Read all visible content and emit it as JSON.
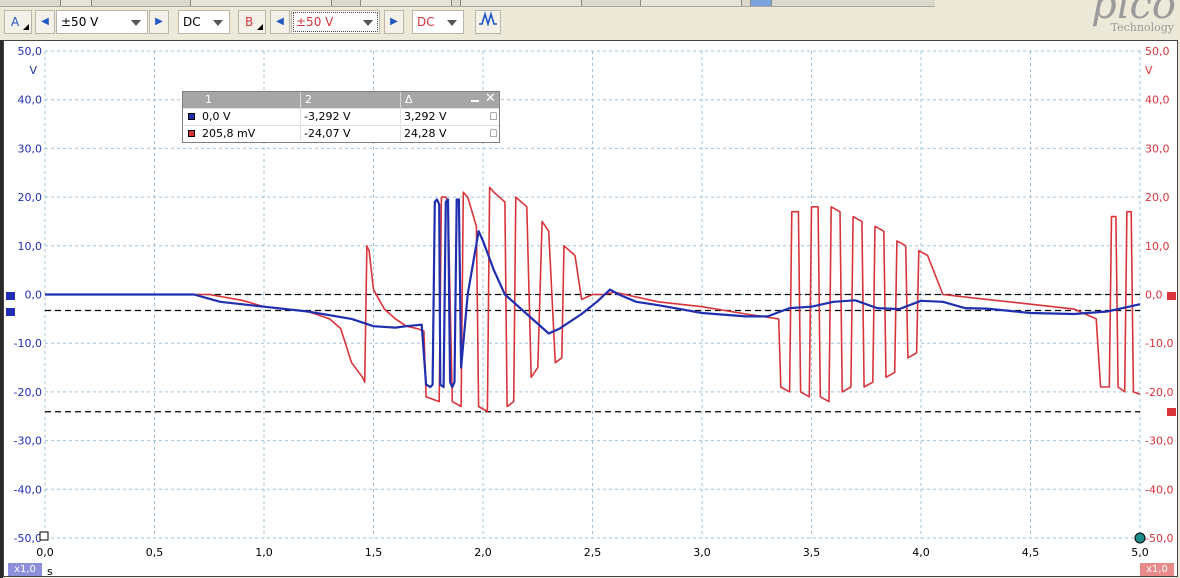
{
  "toolbar": {
    "channel_a": {
      "label": "A",
      "range": "±50 V",
      "coupling": "DC",
      "color": "#1f57c3"
    },
    "channel_b": {
      "label": "B",
      "range": "±50 V",
      "coupling": "DC",
      "color": "#d9343a"
    },
    "trigger_icon": "waveform-trigger-icon"
  },
  "logo": {
    "brand": "pico",
    "tagline": "Technology"
  },
  "left_axis": {
    "unit": "V",
    "ticks": [
      "50,0",
      "40,0",
      "30,0",
      "20,0",
      "10,0",
      "0,0",
      "-10,0",
      "-20,0",
      "-30,0",
      "-40,0",
      "-50,0"
    ]
  },
  "right_axis": {
    "unit": "V",
    "ticks": [
      "50,0",
      "40,0",
      "30,0",
      "20,0",
      "10,0",
      "0,0",
      "-10,0",
      "-20,0",
      "-30,0",
      "-40,0",
      "-50,0"
    ]
  },
  "x_axis": {
    "unit": "s",
    "ticks": [
      "0,0",
      "0,5",
      "1,0",
      "1,5",
      "2,0",
      "2,5",
      "3,0",
      "3,5",
      "4,0",
      "4,5",
      "5,0"
    ],
    "zoom_left": "x1,0",
    "zoom_right": "x1,0"
  },
  "cursor_table": {
    "headers": [
      "1",
      "2",
      "Δ"
    ],
    "rows": [
      {
        "color": "#1f2fb0",
        "c1": "0,0 V",
        "c2": "-3,292 V",
        "delta": "3,292 V"
      },
      {
        "color": "#d9343a",
        "c1": "205,8 mV",
        "c2": "-24,07 V",
        "delta": "24,28 V"
      }
    ]
  },
  "chart_data": {
    "type": "line",
    "xlabel": "s",
    "ylabel": "V",
    "xlim": [
      0,
      5
    ],
    "ylim": [
      -50,
      50
    ],
    "grid": true,
    "cursors_v": [
      0.0,
      -3.292,
      -24.07
    ],
    "series": [
      {
        "color": "#1f2fb0",
        "points": [
          [
            0,
            0
          ],
          [
            0.68,
            0
          ],
          [
            0.72,
            -0.5
          ],
          [
            0.8,
            -1.5
          ],
          [
            1.0,
            -2.5
          ],
          [
            1.2,
            -3.5
          ],
          [
            1.4,
            -5
          ],
          [
            1.5,
            -6.5
          ],
          [
            1.6,
            -6.8
          ],
          [
            1.65,
            -6.5
          ],
          [
            1.72,
            -6.2
          ],
          [
            1.74,
            -18.5
          ],
          [
            1.76,
            -19
          ],
          [
            1.77,
            -18.5
          ],
          [
            1.78,
            19
          ],
          [
            1.79,
            19.5
          ],
          [
            1.8,
            18.5
          ],
          [
            1.805,
            -18.5
          ],
          [
            1.82,
            -19
          ],
          [
            1.83,
            19
          ],
          [
            1.84,
            19.5
          ],
          [
            1.85,
            -18
          ],
          [
            1.86,
            -19
          ],
          [
            1.87,
            -18
          ],
          [
            1.88,
            19.5
          ],
          [
            1.89,
            19.5
          ],
          [
            1.9,
            -15
          ],
          [
            1.93,
            0
          ],
          [
            1.98,
            13
          ],
          [
            2.0,
            11
          ],
          [
            2.05,
            5
          ],
          [
            2.1,
            0
          ],
          [
            2.2,
            -4
          ],
          [
            2.3,
            -8
          ],
          [
            2.35,
            -7
          ],
          [
            2.45,
            -4
          ],
          [
            2.52,
            -1.5
          ],
          [
            2.58,
            1
          ],
          [
            2.62,
            0
          ],
          [
            2.7,
            -1.5
          ],
          [
            2.8,
            -2.2
          ],
          [
            2.9,
            -3
          ],
          [
            3.0,
            -3.8
          ],
          [
            3.2,
            -4.5
          ],
          [
            3.3,
            -4.5
          ],
          [
            3.4,
            -2.8
          ],
          [
            3.5,
            -2.5
          ],
          [
            3.6,
            -1.5
          ],
          [
            3.7,
            -1.2
          ],
          [
            3.8,
            -2.8
          ],
          [
            3.9,
            -3
          ],
          [
            4.0,
            -1.3
          ],
          [
            4.1,
            -1.5
          ],
          [
            4.2,
            -2.8
          ],
          [
            4.3,
            -2.9
          ],
          [
            4.5,
            -3.8
          ],
          [
            4.7,
            -4
          ],
          [
            4.85,
            -3.5
          ],
          [
            4.95,
            -2.5
          ],
          [
            5.0,
            -2
          ]
        ]
      },
      {
        "color": "#d9343a",
        "points": [
          [
            0,
            0
          ],
          [
            0.75,
            0
          ],
          [
            0.9,
            -1.2
          ],
          [
            1.0,
            -2.5
          ],
          [
            1.2,
            -3.5
          ],
          [
            1.3,
            -5
          ],
          [
            1.35,
            -7
          ],
          [
            1.4,
            -14
          ],
          [
            1.45,
            -17
          ],
          [
            1.46,
            -18
          ],
          [
            1.47,
            10
          ],
          [
            1.48,
            9
          ],
          [
            1.5,
            1
          ],
          [
            1.55,
            -3
          ],
          [
            1.6,
            -5
          ],
          [
            1.65,
            -6.5
          ],
          [
            1.7,
            -7
          ],
          [
            1.73,
            -7.5
          ],
          [
            1.74,
            -21
          ],
          [
            1.8,
            -22
          ],
          [
            1.81,
            20
          ],
          [
            1.83,
            20
          ],
          [
            1.84,
            19
          ],
          [
            1.86,
            -22
          ],
          [
            1.9,
            -23
          ],
          [
            1.91,
            21
          ],
          [
            1.93,
            20
          ],
          [
            1.97,
            14
          ],
          [
            1.98,
            -23
          ],
          [
            2.02,
            -24
          ],
          [
            2.03,
            22
          ],
          [
            2.05,
            21
          ],
          [
            2.1,
            19
          ],
          [
            2.11,
            -23
          ],
          [
            2.14,
            -22
          ],
          [
            2.15,
            20
          ],
          [
            2.2,
            18
          ],
          [
            2.22,
            -17
          ],
          [
            2.25,
            -15
          ],
          [
            2.27,
            15
          ],
          [
            2.3,
            13
          ],
          [
            2.33,
            -14
          ],
          [
            2.36,
            -13
          ],
          [
            2.37,
            10
          ],
          [
            2.42,
            8
          ],
          [
            2.45,
            -1
          ],
          [
            2.5,
            0
          ],
          [
            2.55,
            0
          ],
          [
            2.6,
            0.5
          ],
          [
            2.8,
            -1.5
          ],
          [
            3.0,
            -2.5
          ],
          [
            3.2,
            -4
          ],
          [
            3.35,
            -5
          ],
          [
            3.36,
            -19
          ],
          [
            3.4,
            -20
          ],
          [
            3.41,
            17
          ],
          [
            3.44,
            17
          ],
          [
            3.45,
            -20
          ],
          [
            3.49,
            -21
          ],
          [
            3.5,
            18
          ],
          [
            3.53,
            18
          ],
          [
            3.54,
            -21
          ],
          [
            3.58,
            -22
          ],
          [
            3.59,
            18
          ],
          [
            3.63,
            17
          ],
          [
            3.64,
            -20
          ],
          [
            3.68,
            -19
          ],
          [
            3.69,
            16
          ],
          [
            3.73,
            15
          ],
          [
            3.74,
            -19
          ],
          [
            3.78,
            -18
          ],
          [
            3.79,
            14
          ],
          [
            3.83,
            13
          ],
          [
            3.84,
            -17
          ],
          [
            3.88,
            -16
          ],
          [
            3.89,
            11
          ],
          [
            3.93,
            10
          ],
          [
            3.94,
            -13
          ],
          [
            3.98,
            -12
          ],
          [
            3.99,
            9
          ],
          [
            4.03,
            8
          ],
          [
            4.1,
            0
          ],
          [
            4.3,
            -1
          ],
          [
            4.5,
            -2
          ],
          [
            4.7,
            -3
          ],
          [
            4.8,
            -5
          ],
          [
            4.82,
            -19
          ],
          [
            4.86,
            -19
          ],
          [
            4.87,
            16
          ],
          [
            4.89,
            16
          ],
          [
            4.9,
            -19
          ],
          [
            4.93,
            -20
          ],
          [
            4.94,
            17
          ],
          [
            4.96,
            17
          ],
          [
            4.97,
            -20
          ],
          [
            5.0,
            -20.5
          ]
        ]
      }
    ]
  }
}
